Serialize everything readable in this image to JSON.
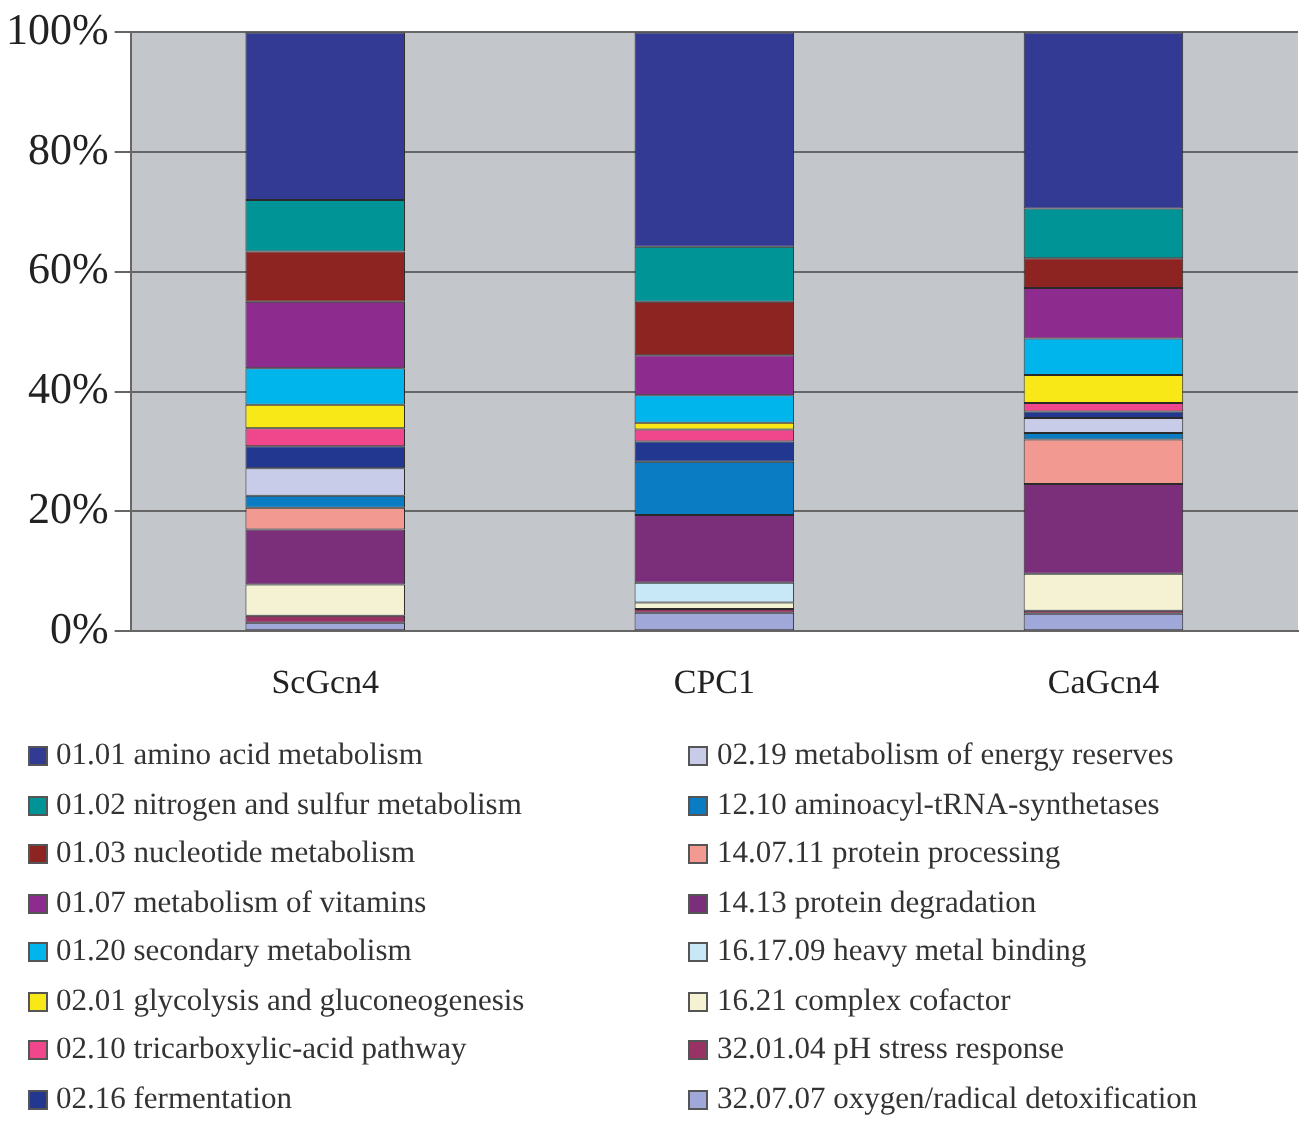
{
  "chart_data": {
    "type": "bar",
    "stacked": true,
    "categories": [
      "ScGcn4",
      "CPC1",
      "CaGcn4"
    ],
    "ylim": [
      0,
      100
    ],
    "yticks": [
      {
        "value": 0,
        "label": "0%"
      },
      {
        "value": 20,
        "label": "20%"
      },
      {
        "value": 40,
        "label": "40%"
      },
      {
        "value": 60,
        "label": "60%"
      },
      {
        "value": 80,
        "label": "80%"
      },
      {
        "value": 100,
        "label": "100%"
      }
    ],
    "grid": "y",
    "legend": "bottom",
    "series": [
      {
        "name": "32.07.07 oxygen/radical detoxification",
        "color": "#9fa8d8",
        "values": [
          1.4,
          3.1,
          2.9
        ]
      },
      {
        "name": "32.01.04 pH stress response",
        "color": "#993366",
        "values": [
          1.2,
          0.6,
          0.5
        ]
      },
      {
        "name": "16.21 complex cofactor",
        "color": "#f4f2d2",
        "values": [
          5.2,
          1.1,
          6.2
        ]
      },
      {
        "name": "16.17.09 heavy metal binding",
        "color": "#c8e8f8",
        "values": [
          0,
          3.3,
          0
        ]
      },
      {
        "name": "14.13 protein degradation",
        "color": "#7b2f7b",
        "values": [
          9.2,
          11.3,
          15.0
        ]
      },
      {
        "name": "14.07.11 protein processing",
        "color": "#f29a92",
        "values": [
          3.6,
          0,
          7.4
        ]
      },
      {
        "name": "12.10 aminoacyl-tRNA-synthetases",
        "color": "#0a7cc4",
        "values": [
          2.0,
          8.9,
          1.1
        ]
      },
      {
        "name": "02.19 metabolism of energy reserves",
        "color": "#c8cce8",
        "values": [
          4.6,
          0,
          2.5
        ]
      },
      {
        "name": "02.16 fermentation",
        "color": "#22378f",
        "values": [
          3.7,
          3.4,
          1.1
        ]
      },
      {
        "name": "02.10 tricarboxylic-acid pathway",
        "color": "#f0468c",
        "values": [
          3.0,
          2.0,
          1.4
        ]
      },
      {
        "name": "02.01 glycolysis and gluconeogenesis",
        "color": "#f8e818",
        "values": [
          3.9,
          1.1,
          4.7
        ]
      },
      {
        "name": "01.20 secondary metabolism",
        "color": "#00b4ec",
        "values": [
          6.1,
          4.6,
          6.1
        ]
      },
      {
        "name": "01.07 metabolism of vitamins",
        "color": "#8e2b8e",
        "values": [
          11.1,
          6.7,
          8.4
        ]
      },
      {
        "name": "01.03 nucleotide metabolism",
        "color": "#8e2422",
        "values": [
          8.4,
          8.9,
          5.0
        ]
      },
      {
        "name": "01.02 nitrogen and sulfur metabolism",
        "color": "#009496",
        "values": [
          8.6,
          9.2,
          8.3
        ]
      },
      {
        "name": "01.01 amino acid metabolism",
        "color": "#333a94",
        "values": [
          28.0,
          35.8,
          29.4
        ]
      }
    ]
  }
}
